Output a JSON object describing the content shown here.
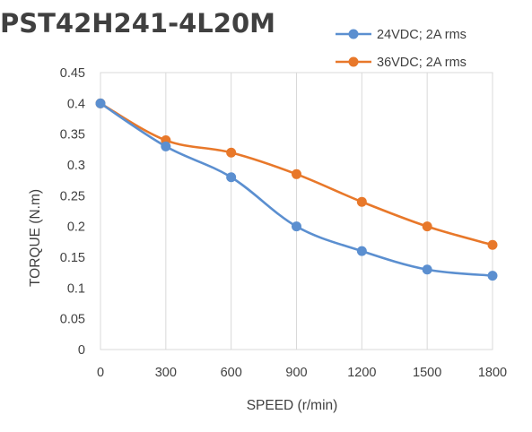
{
  "chart_data": {
    "type": "line",
    "title": "PST42H241-4L20M",
    "xlabel": "SPEED (r/min)",
    "ylabel": "TORQUE (N.m)",
    "x": [
      0,
      300,
      600,
      900,
      1200,
      1500,
      1800
    ],
    "x_tick_labels": [
      "0",
      "300",
      "600",
      "900",
      "1200",
      "1500",
      "1800"
    ],
    "xlim": [
      0,
      1800
    ],
    "ylim": [
      0,
      0.45
    ],
    "y_ticks": [
      0,
      0.05,
      0.1,
      0.15,
      0.2,
      0.25,
      0.3,
      0.35,
      0.4,
      0.45
    ],
    "y_tick_labels": [
      "0",
      "0.05",
      "0.1",
      "0.15",
      "0.2",
      "0.25",
      "0.3",
      "0.35",
      "0.4",
      "0.45"
    ],
    "grid": "vertical",
    "legend_position": "top-right",
    "series": [
      {
        "name": "24VDC; 2A rms",
        "color": "#5B8FD0",
        "values": [
          0.4,
          0.33,
          0.28,
          0.2,
          0.16,
          0.13,
          0.12
        ]
      },
      {
        "name": "36VDC; 2A rms",
        "color": "#E8782A",
        "values": [
          0.4,
          0.34,
          0.32,
          0.285,
          0.24,
          0.2,
          0.17
        ]
      }
    ]
  }
}
